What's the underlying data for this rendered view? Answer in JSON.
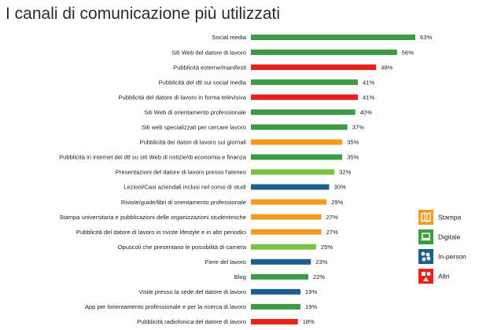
{
  "title": "I canali di comunicazione più utilizzati",
  "chart_data": {
    "type": "bar",
    "orientation": "horizontal",
    "title": "I canali di comunicazione più utilizzati",
    "value_suffix": "%",
    "bars": [
      {
        "label": "Social media",
        "value": 63,
        "group": "Digitale"
      },
      {
        "label": "Siti Web del datore di lavoro",
        "value": 56,
        "group": "Digitale"
      },
      {
        "label": "Pubblicità esterne/manifesti",
        "value": 48,
        "group": "Altri"
      },
      {
        "label": "Pubblicità del dtl sui social media",
        "value": 41,
        "group": "Digitale"
      },
      {
        "label": "Pubblicità del datore di lavoro in forma televisiva",
        "value": 41,
        "group": "Altri"
      },
      {
        "label": "Siti Web di orientamento professionale",
        "value": 40,
        "group": "Digitale"
      },
      {
        "label": "Siti web specializzati per cercare lavoro",
        "value": 37,
        "group": "Digitale"
      },
      {
        "label": "Pubblicità dei datori di lavoro sui giornali",
        "value": 35,
        "group": "Stampa"
      },
      {
        "label": "Pubblicità in internet dei dtl su siti Web di notizie/di economia e finanza",
        "value": 35,
        "group": "Digitale"
      },
      {
        "label": "Presentazioni del datore di lavoro presso l'ateneo",
        "value": 32,
        "group": "Presentazioni"
      },
      {
        "label": "Lezioni/Casi aziendali inclusi nel corso di studi",
        "value": 30,
        "group": "In-person"
      },
      {
        "label": "Riviste/guide/libri di orientamento professionale",
        "value": 29,
        "group": "Stampa"
      },
      {
        "label": "Stampa universitaria e pubblicazioni delle organizzazioni studentesche",
        "value": 27,
        "group": "Stampa"
      },
      {
        "label": "Pubblicità del datore di lavoro in riviste lifestyle e in altri periodici",
        "value": 27,
        "group": "Stampa"
      },
      {
        "label": "Opuscoli che presentano le possibilità di carriera",
        "value": 25,
        "group": "Presentazioni"
      },
      {
        "label": "Fiere del lavoro",
        "value": 23,
        "group": "In-person"
      },
      {
        "label": "Blog",
        "value": 22,
        "group": "Digitale"
      },
      {
        "label": "Visite presso la sede del datore di lavoro",
        "value": 19,
        "group": "In-person"
      },
      {
        "label": "App per lorientamento professionale e per la ricerca di lavoro",
        "value": 19,
        "group": "Digitale"
      },
      {
        "label": "Pubblicità radiofonica del datore di lavoro",
        "value": 18,
        "group": "Altri"
      }
    ],
    "colors": {
      "Digitale": "#3d9a45",
      "Altri": "#e8221b",
      "Stampa": "#f39a1f",
      "Presentazioni": "#7cc242",
      "In-person": "#1d5f8a"
    },
    "legend": {
      "placement": "right",
      "items": [
        {
          "label": "Stampa",
          "group": "Stampa",
          "icon": "map-icon"
        },
        {
          "label": "Digitale",
          "group": "Digitale",
          "icon": "laptop-icon"
        },
        {
          "label": "In-person",
          "group": "In-person",
          "icon": "people-icon"
        },
        {
          "label": "Altri",
          "group": "Altri",
          "icon": "shapes-icon"
        }
      ]
    }
  }
}
